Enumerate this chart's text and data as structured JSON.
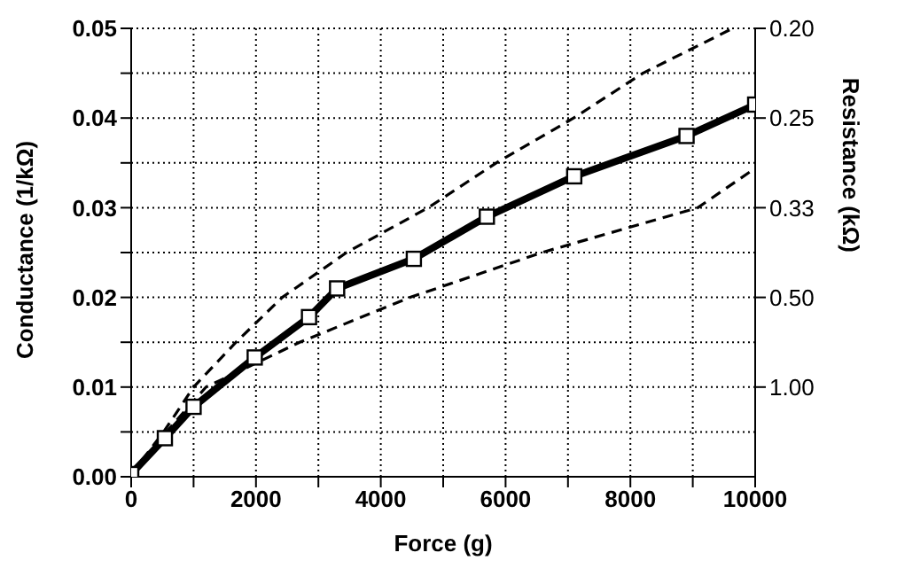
{
  "chart_data": {
    "type": "line",
    "xlabel": "Force (g)",
    "ylabel": "Conductance (1/kΩ)",
    "y2label": "Resistance (kΩ)",
    "xlim": [
      0,
      10000
    ],
    "xticks": [
      0,
      {
        "value": 1000,
        "label": null
      },
      2000,
      {
        "value": 3000,
        "label": null
      },
      4000,
      {
        "value": 5000,
        "label": null
      },
      6000,
      {
        "value": 7000,
        "label": null
      },
      8000,
      {
        "value": 9000,
        "label": null
      },
      10000
    ],
    "ylim": [
      0,
      0.05
    ],
    "yticks": [
      {
        "value": 0,
        "label": "0.00"
      },
      {
        "value": 0.005,
        "label": null
      },
      0.01,
      {
        "value": 0.015,
        "label": null
      },
      0.02,
      {
        "value": 0.025,
        "label": null
      },
      0.03,
      {
        "value": 0.035,
        "label": null
      },
      0.04,
      {
        "value": 0.045,
        "label": null
      },
      0.05
    ],
    "annotations": [
      "1.00",
      "0.50",
      "0.33",
      "0.25",
      "0.20"
    ],
    "grid": true,
    "series": [
      {
        "color": "#000000",
        "marker": "square",
        "line_style": "solid",
        "x": [
          0,
          540,
          1000,
          1980,
          2850,
          3300,
          4530,
          5700,
          7100,
          8900,
          10000
        ],
        "values": [
          0.0003,
          0.0043,
          0.0078,
          0.0133,
          0.0178,
          0.021,
          0.0243,
          0.029,
          0.0335,
          0.038,
          0.0415
        ]
      },
      {
        "color": "#000000",
        "marker": "none",
        "line_style": "dashed",
        "x": [
          0,
          500,
          1000,
          1680,
          2420,
          3450,
          4760,
          5850,
          7090,
          8200,
          9640
        ],
        "values": [
          0.0003,
          0.0048,
          0.01,
          0.015,
          0.02,
          0.025,
          0.03,
          0.035,
          0.04,
          0.045,
          0.05
        ]
      },
      {
        "color": "#000000",
        "marker": "none",
        "line_style": "dashed",
        "x": [
          0,
          500,
          1200,
          2700,
          4470,
          6580,
          9080,
          10000
        ],
        "values": [
          0.0003,
          0.0045,
          0.01,
          0.015,
          0.02,
          0.025,
          0.03,
          0.0344
        ]
      }
    ]
  }
}
